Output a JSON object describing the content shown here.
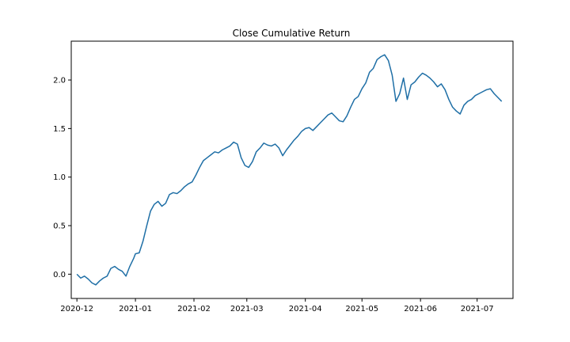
{
  "chart_data": {
    "type": "line",
    "title": "Close Cumulative Return",
    "xlabel": "",
    "ylabel": "",
    "x_range": [
      "2020-11-28",
      "2021-07-20"
    ],
    "ylim": [
      -0.25,
      2.4
    ],
    "x_ticks": [
      "2020-12",
      "2021-01",
      "2021-02",
      "2021-03",
      "2021-04",
      "2021-05",
      "2021-06",
      "2021-07"
    ],
    "x_tick_labels": [
      "2020-12",
      "2021-01",
      "2021-02",
      "2021-03",
      "2021-04",
      "2021-05",
      "2021-06",
      "2021-07"
    ],
    "y_ticks": [
      0.0,
      0.5,
      1.0,
      1.5,
      2.0
    ],
    "y_tick_labels": [
      "0.0",
      "0.5",
      "1.0",
      "1.5",
      "2.0"
    ],
    "grid": false,
    "series": [
      {
        "color": "#1f6fa6",
        "x": [
          "2020-12-01",
          "2020-12-03",
          "2020-12-05",
          "2020-12-07",
          "2020-12-09",
          "2020-12-11",
          "2020-12-13",
          "2020-12-15",
          "2020-12-17",
          "2020-12-19",
          "2020-12-21",
          "2020-12-23",
          "2020-12-25",
          "2020-12-27",
          "2020-12-29",
          "2020-12-31",
          "2021-01-01",
          "2021-01-03",
          "2021-01-05",
          "2021-01-07",
          "2021-01-09",
          "2021-01-11",
          "2021-01-13",
          "2021-01-15",
          "2021-01-17",
          "2021-01-19",
          "2021-01-21",
          "2021-01-23",
          "2021-01-25",
          "2021-01-27",
          "2021-01-29",
          "2021-01-31",
          "2021-02-02",
          "2021-02-04",
          "2021-02-06",
          "2021-02-08",
          "2021-02-10",
          "2021-02-12",
          "2021-02-14",
          "2021-02-16",
          "2021-02-18",
          "2021-02-20",
          "2021-02-22",
          "2021-02-24",
          "2021-02-26",
          "2021-02-28",
          "2021-03-02",
          "2021-03-04",
          "2021-03-06",
          "2021-03-08",
          "2021-03-10",
          "2021-03-12",
          "2021-03-14",
          "2021-03-16",
          "2021-03-18",
          "2021-03-20",
          "2021-03-22",
          "2021-03-24",
          "2021-03-26",
          "2021-03-28",
          "2021-03-30",
          "2021-04-01",
          "2021-04-03",
          "2021-04-05",
          "2021-04-07",
          "2021-04-09",
          "2021-04-11",
          "2021-04-13",
          "2021-04-15",
          "2021-04-17",
          "2021-04-19",
          "2021-04-21",
          "2021-04-23",
          "2021-04-25",
          "2021-04-27",
          "2021-04-29",
          "2021-05-01",
          "2021-05-03",
          "2021-05-05",
          "2021-05-07",
          "2021-05-09",
          "2021-05-11",
          "2021-05-13",
          "2021-05-15",
          "2021-05-17",
          "2021-05-19",
          "2021-05-21",
          "2021-05-23",
          "2021-05-25",
          "2021-05-27",
          "2021-05-29",
          "2021-05-31",
          "2021-06-02",
          "2021-06-04",
          "2021-06-06",
          "2021-06-08",
          "2021-06-10",
          "2021-06-12",
          "2021-06-14",
          "2021-06-16",
          "2021-06-18",
          "2021-06-20",
          "2021-06-22",
          "2021-06-24",
          "2021-06-26",
          "2021-06-28",
          "2021-06-30",
          "2021-07-02",
          "2021-07-04",
          "2021-07-06",
          "2021-07-08",
          "2021-07-10",
          "2021-07-12",
          "2021-07-14"
        ],
        "values": [
          0.0,
          -0.04,
          -0.02,
          -0.05,
          -0.09,
          -0.11,
          -0.07,
          -0.04,
          -0.02,
          0.06,
          0.08,
          0.05,
          0.03,
          -0.02,
          0.08,
          0.16,
          0.21,
          0.22,
          0.34,
          0.5,
          0.65,
          0.72,
          0.75,
          0.7,
          0.73,
          0.82,
          0.84,
          0.83,
          0.86,
          0.9,
          0.93,
          0.95,
          1.02,
          1.1,
          1.17,
          1.2,
          1.23,
          1.26,
          1.25,
          1.28,
          1.3,
          1.32,
          1.36,
          1.34,
          1.2,
          1.12,
          1.1,
          1.16,
          1.26,
          1.3,
          1.35,
          1.33,
          1.32,
          1.34,
          1.3,
          1.22,
          1.28,
          1.33,
          1.38,
          1.42,
          1.47,
          1.5,
          1.51,
          1.48,
          1.52,
          1.56,
          1.6,
          1.64,
          1.66,
          1.62,
          1.58,
          1.57,
          1.63,
          1.72,
          1.8,
          1.83,
          1.91,
          1.97,
          2.08,
          2.12,
          2.21,
          2.24,
          2.26,
          2.2,
          2.05,
          1.78,
          1.86,
          2.02,
          1.8,
          1.95,
          1.98,
          2.03,
          2.07,
          2.05,
          2.02,
          1.98,
          1.93,
          1.96,
          1.9,
          1.8,
          1.72,
          1.68,
          1.65,
          1.74,
          1.78,
          1.8,
          1.84,
          1.86,
          1.88,
          1.9,
          1.91,
          1.86,
          1.82,
          1.78
        ]
      }
    ]
  }
}
